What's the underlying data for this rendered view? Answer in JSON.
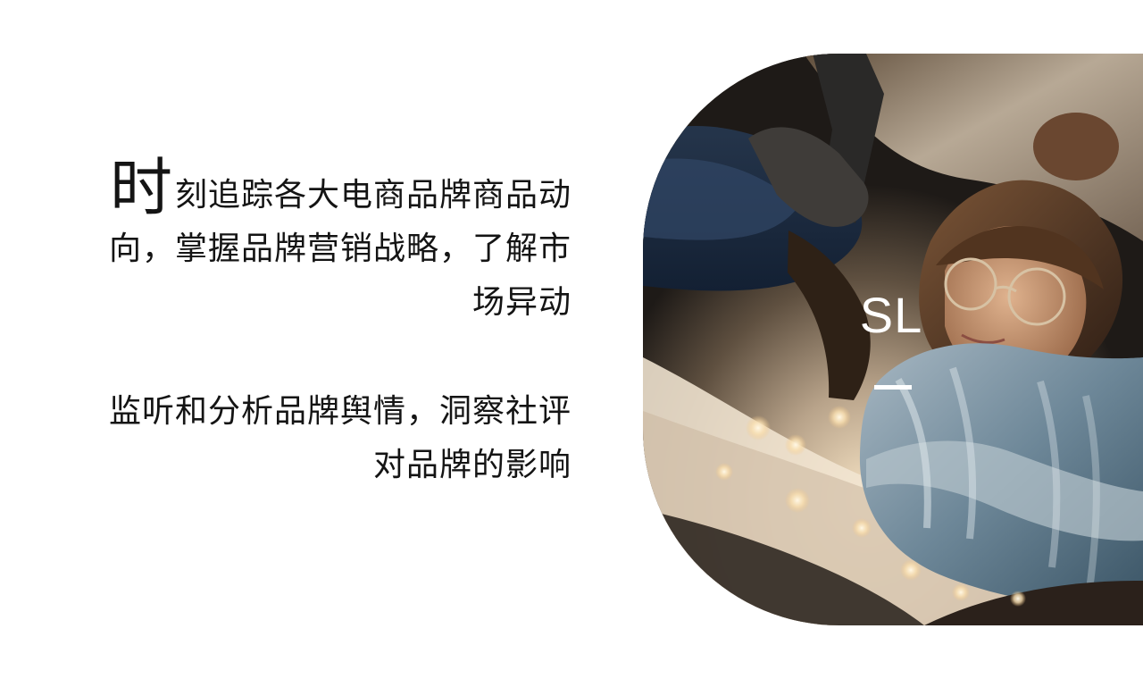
{
  "text": {
    "intro_first_char": "时",
    "intro_rest": "刻追踪各大电商品牌商品动向，掌握品牌营销战略，了解市场异动",
    "second_paragraph": "监听和分析品牌舆情，洞察社评对品牌的影响"
  },
  "hero": {
    "monogram": "SL"
  }
}
